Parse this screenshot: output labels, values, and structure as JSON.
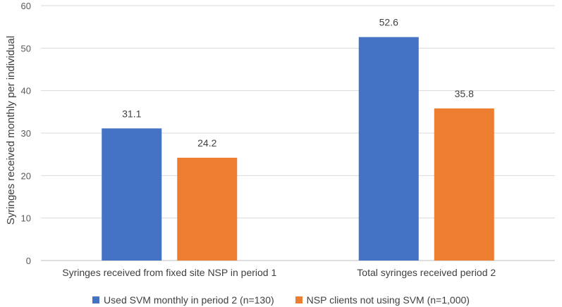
{
  "chart_data": {
    "type": "bar",
    "categories": [
      "Syringes received from fixed site NSP in period 1",
      "Total syringes received period 2"
    ],
    "series": [
      {
        "name": "Used SVM monthly in period 2 (n=130)",
        "values": [
          31.1,
          52.6
        ],
        "color": "#4472C4"
      },
      {
        "name": "NSP clients not using SVM (n=1,000)",
        "values": [
          24.2,
          35.8
        ],
        "color": "#ED7D31"
      }
    ],
    "data_labels": [
      [
        "31.1",
        "52.6"
      ],
      [
        "24.2",
        "35.8"
      ]
    ],
    "ylabel": "Syringes received monthly per individual",
    "xlabel": "",
    "ylim": [
      0,
      60
    ],
    "yticks": [
      0,
      10,
      20,
      30,
      40,
      50,
      60
    ],
    "grid": true,
    "legend": "bottom"
  }
}
